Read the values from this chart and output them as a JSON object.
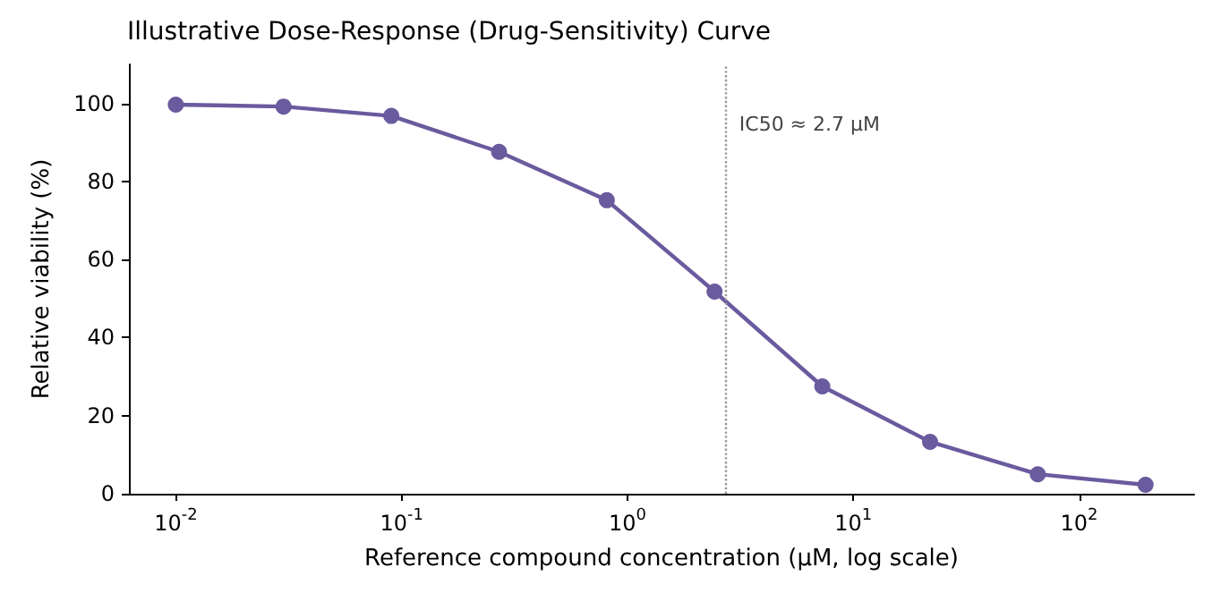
{
  "chart_data": {
    "type": "line",
    "title": "Illustrative Dose-Response (Drug-Sensitivity) Curve",
    "xlabel": "Reference compound concentration (µM, log scale)",
    "ylabel": "Relative viability (%)",
    "x": [
      0.01,
      0.03,
      0.09,
      0.27,
      0.81,
      2.43,
      7.29,
      21.87,
      65.61,
      196.83
    ],
    "series": [
      {
        "color": "#6a5a9e",
        "values": [
          99.7,
          99.2,
          96.8,
          87.6,
          75.2,
          51.8,
          27.5,
          13.3,
          5,
          2.3
        ]
      }
    ],
    "log": "x",
    "xlim": [
      0.0062,
      323
    ],
    "xticks": [
      {
        "value": 0.01,
        "label": "10$^{-2}$"
      },
      {
        "value": 0.1,
        "label": "10$^{-1}$"
      },
      {
        "value": 1,
        "label": "10$^{0}$"
      },
      {
        "value": 10,
        "label": "10$^{1}$"
      },
      {
        "value": 100,
        "label": "10$^{2}$"
      }
    ],
    "ylim": [
      0,
      110
    ],
    "yticks": [
      0,
      20,
      40,
      60,
      80,
      100
    ],
    "ref_lines": [
      {
        "axis": "x",
        "value": 2.7,
        "label": "IC50 ≈ 2.7 µM",
        "color": "#999999",
        "line_style": "dotted"
      }
    ],
    "grid": false,
    "marker": "circle",
    "line_style": "solid"
  }
}
